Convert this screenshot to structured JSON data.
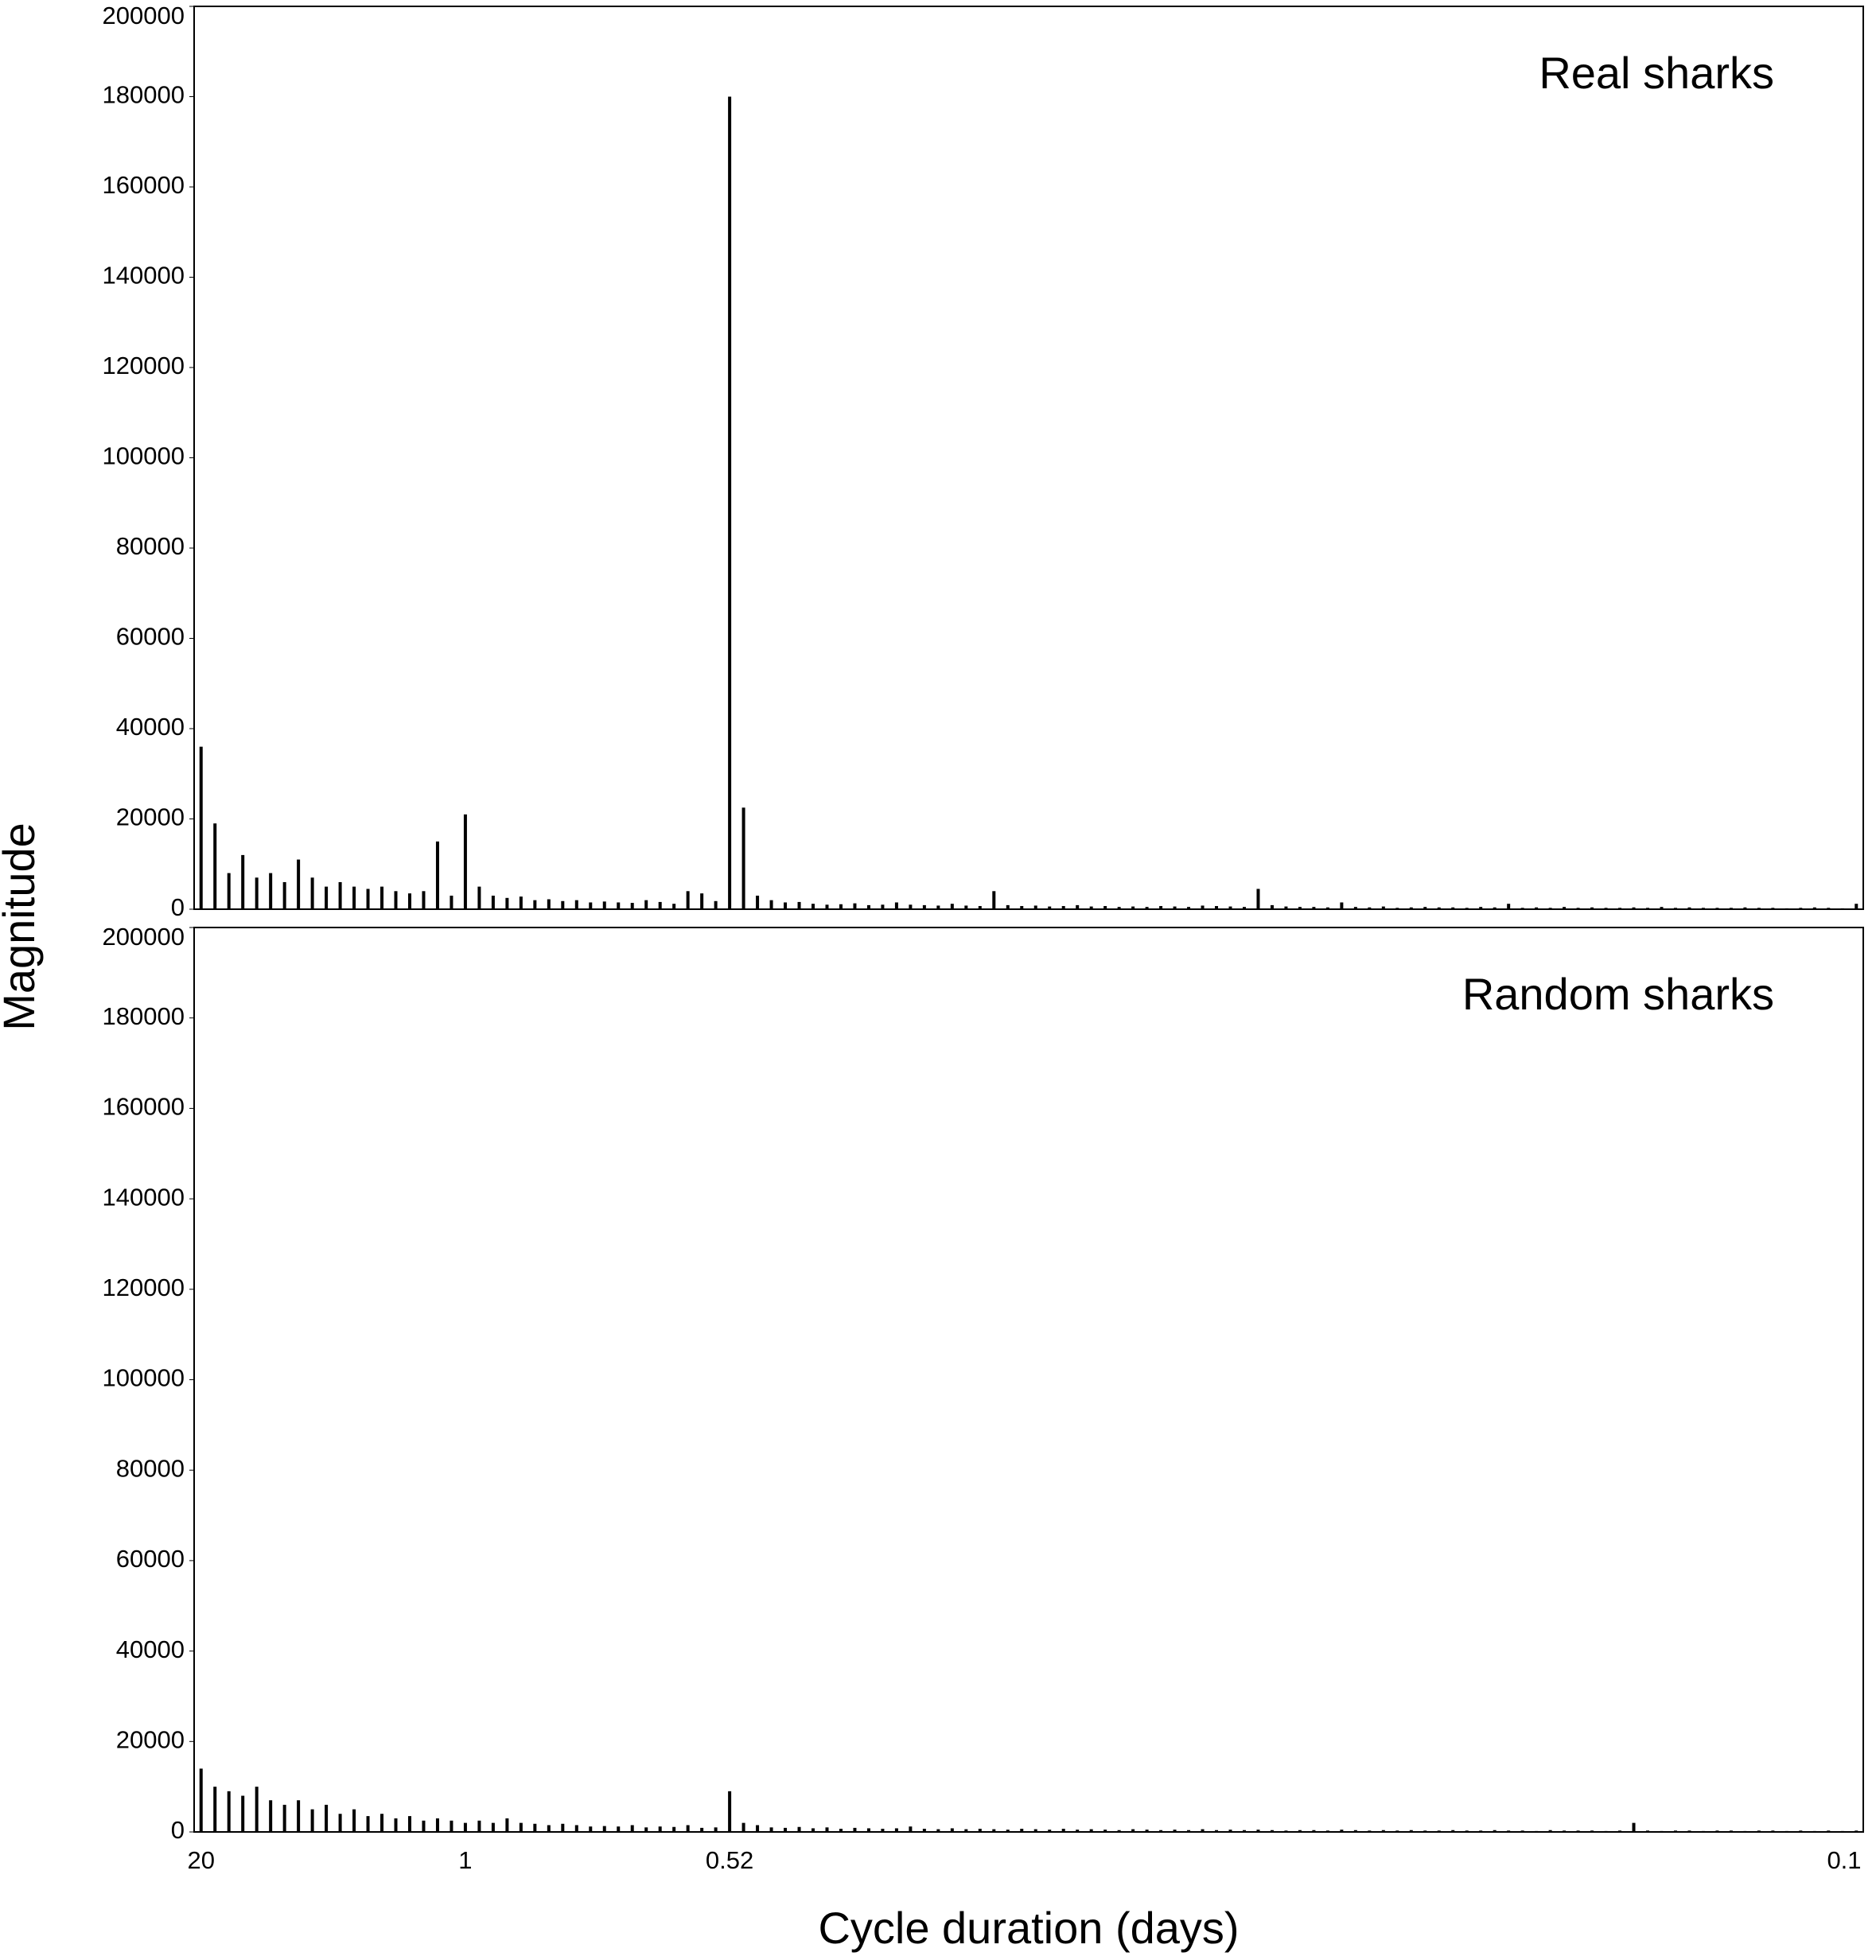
{
  "chart_data": [
    {
      "type": "bar",
      "title": "Real sharks",
      "y_label": "Magnitude",
      "color": "#000000",
      "ylim": [
        0,
        200000
      ],
      "yticks": [
        0,
        20000,
        40000,
        60000,
        80000,
        100000,
        120000,
        140000,
        160000,
        180000,
        200000
      ],
      "values": [
        36000,
        19000,
        8000,
        12000,
        7000,
        8000,
        6000,
        11000,
        7000,
        5000,
        6000,
        5000,
        4500,
        5000,
        4000,
        3500,
        4000,
        15000,
        3000,
        21000,
        5000,
        3000,
        2500,
        2800,
        2000,
        2200,
        1800,
        2000,
        1500,
        1700,
        1500,
        1400,
        2000,
        1600,
        1200,
        4000,
        3500,
        1800,
        180000,
        22500,
        3000,
        2000,
        1500,
        1600,
        1200,
        1000,
        1100,
        1300,
        900,
        1000,
        1500,
        1000,
        900,
        800,
        1200,
        800,
        700,
        4000,
        900,
        700,
        800,
        600,
        700,
        900,
        600,
        700,
        500,
        600,
        500,
        700,
        600,
        500,
        800,
        700,
        600,
        500,
        4500,
        900,
        600,
        500,
        500,
        400,
        1500,
        500,
        400,
        600,
        300,
        400,
        500,
        400,
        400,
        300,
        500,
        400,
        1200,
        300,
        400,
        300,
        500,
        300,
        400,
        300,
        300,
        400,
        300,
        500,
        300,
        400,
        300,
        300,
        300,
        400,
        300,
        300,
        200,
        300,
        400,
        300,
        200,
        1200
      ]
    },
    {
      "type": "bar",
      "title": "Random sharks",
      "x_label": "Cycle duration (days)",
      "color": "#000000",
      "ylim": [
        0,
        200000
      ],
      "yticks": [
        0,
        20000,
        40000,
        60000,
        80000,
        100000,
        120000,
        140000,
        160000,
        180000,
        200000
      ],
      "categories": [
        "20",
        null,
        null,
        null,
        null,
        null,
        null,
        null,
        null,
        null,
        null,
        null,
        null,
        null,
        null,
        null,
        null,
        null,
        null,
        "1",
        null,
        null,
        null,
        null,
        null,
        null,
        null,
        null,
        null,
        null,
        null,
        null,
        null,
        null,
        null,
        null,
        null,
        null,
        "0.52",
        null,
        null,
        null,
        null,
        null,
        null,
        null,
        null,
        null,
        null,
        null,
        null,
        null,
        null,
        null,
        null,
        null,
        null,
        null,
        null,
        null,
        null,
        null,
        null,
        null,
        null,
        null,
        null,
        null,
        null,
        null,
        null,
        null,
        null,
        null,
        null,
        null,
        null,
        null,
        null,
        null,
        null,
        null,
        null,
        null,
        null,
        null,
        null,
        null,
        null,
        null,
        null,
        null,
        null,
        null,
        null,
        null,
        null,
        null,
        null,
        null,
        null,
        null,
        null,
        null,
        null,
        null,
        null,
        null,
        null,
        null,
        null,
        null,
        null,
        null,
        null,
        null,
        null,
        null,
        null,
        "0.1"
      ],
      "values": [
        14000,
        10000,
        9000,
        8000,
        10000,
        7000,
        6000,
        7000,
        5000,
        6000,
        4000,
        5000,
        3500,
        4000,
        3000,
        3500,
        2500,
        3000,
        2500,
        2000,
        2500,
        2000,
        3000,
        2000,
        1800,
        1500,
        1800,
        1500,
        1200,
        1300,
        1200,
        1500,
        1000,
        1200,
        1100,
        1500,
        900,
        1000,
        9000,
        2000,
        1500,
        1000,
        900,
        1100,
        800,
        1000,
        700,
        900,
        800,
        700,
        800,
        1200,
        700,
        600,
        800,
        600,
        700,
        600,
        500,
        700,
        600,
        500,
        700,
        500,
        600,
        500,
        400,
        600,
        500,
        400,
        500,
        400,
        600,
        400,
        500,
        400,
        500,
        400,
        300,
        400,
        400,
        300,
        500,
        400,
        300,
        400,
        300,
        400,
        300,
        300,
        400,
        300,
        300,
        400,
        300,
        300,
        200,
        400,
        300,
        300,
        300,
        200,
        300,
        2000,
        300,
        200,
        300,
        300,
        200,
        300,
        300,
        200,
        300,
        300,
        200,
        300,
        200,
        300,
        200,
        300
      ]
    }
  ]
}
